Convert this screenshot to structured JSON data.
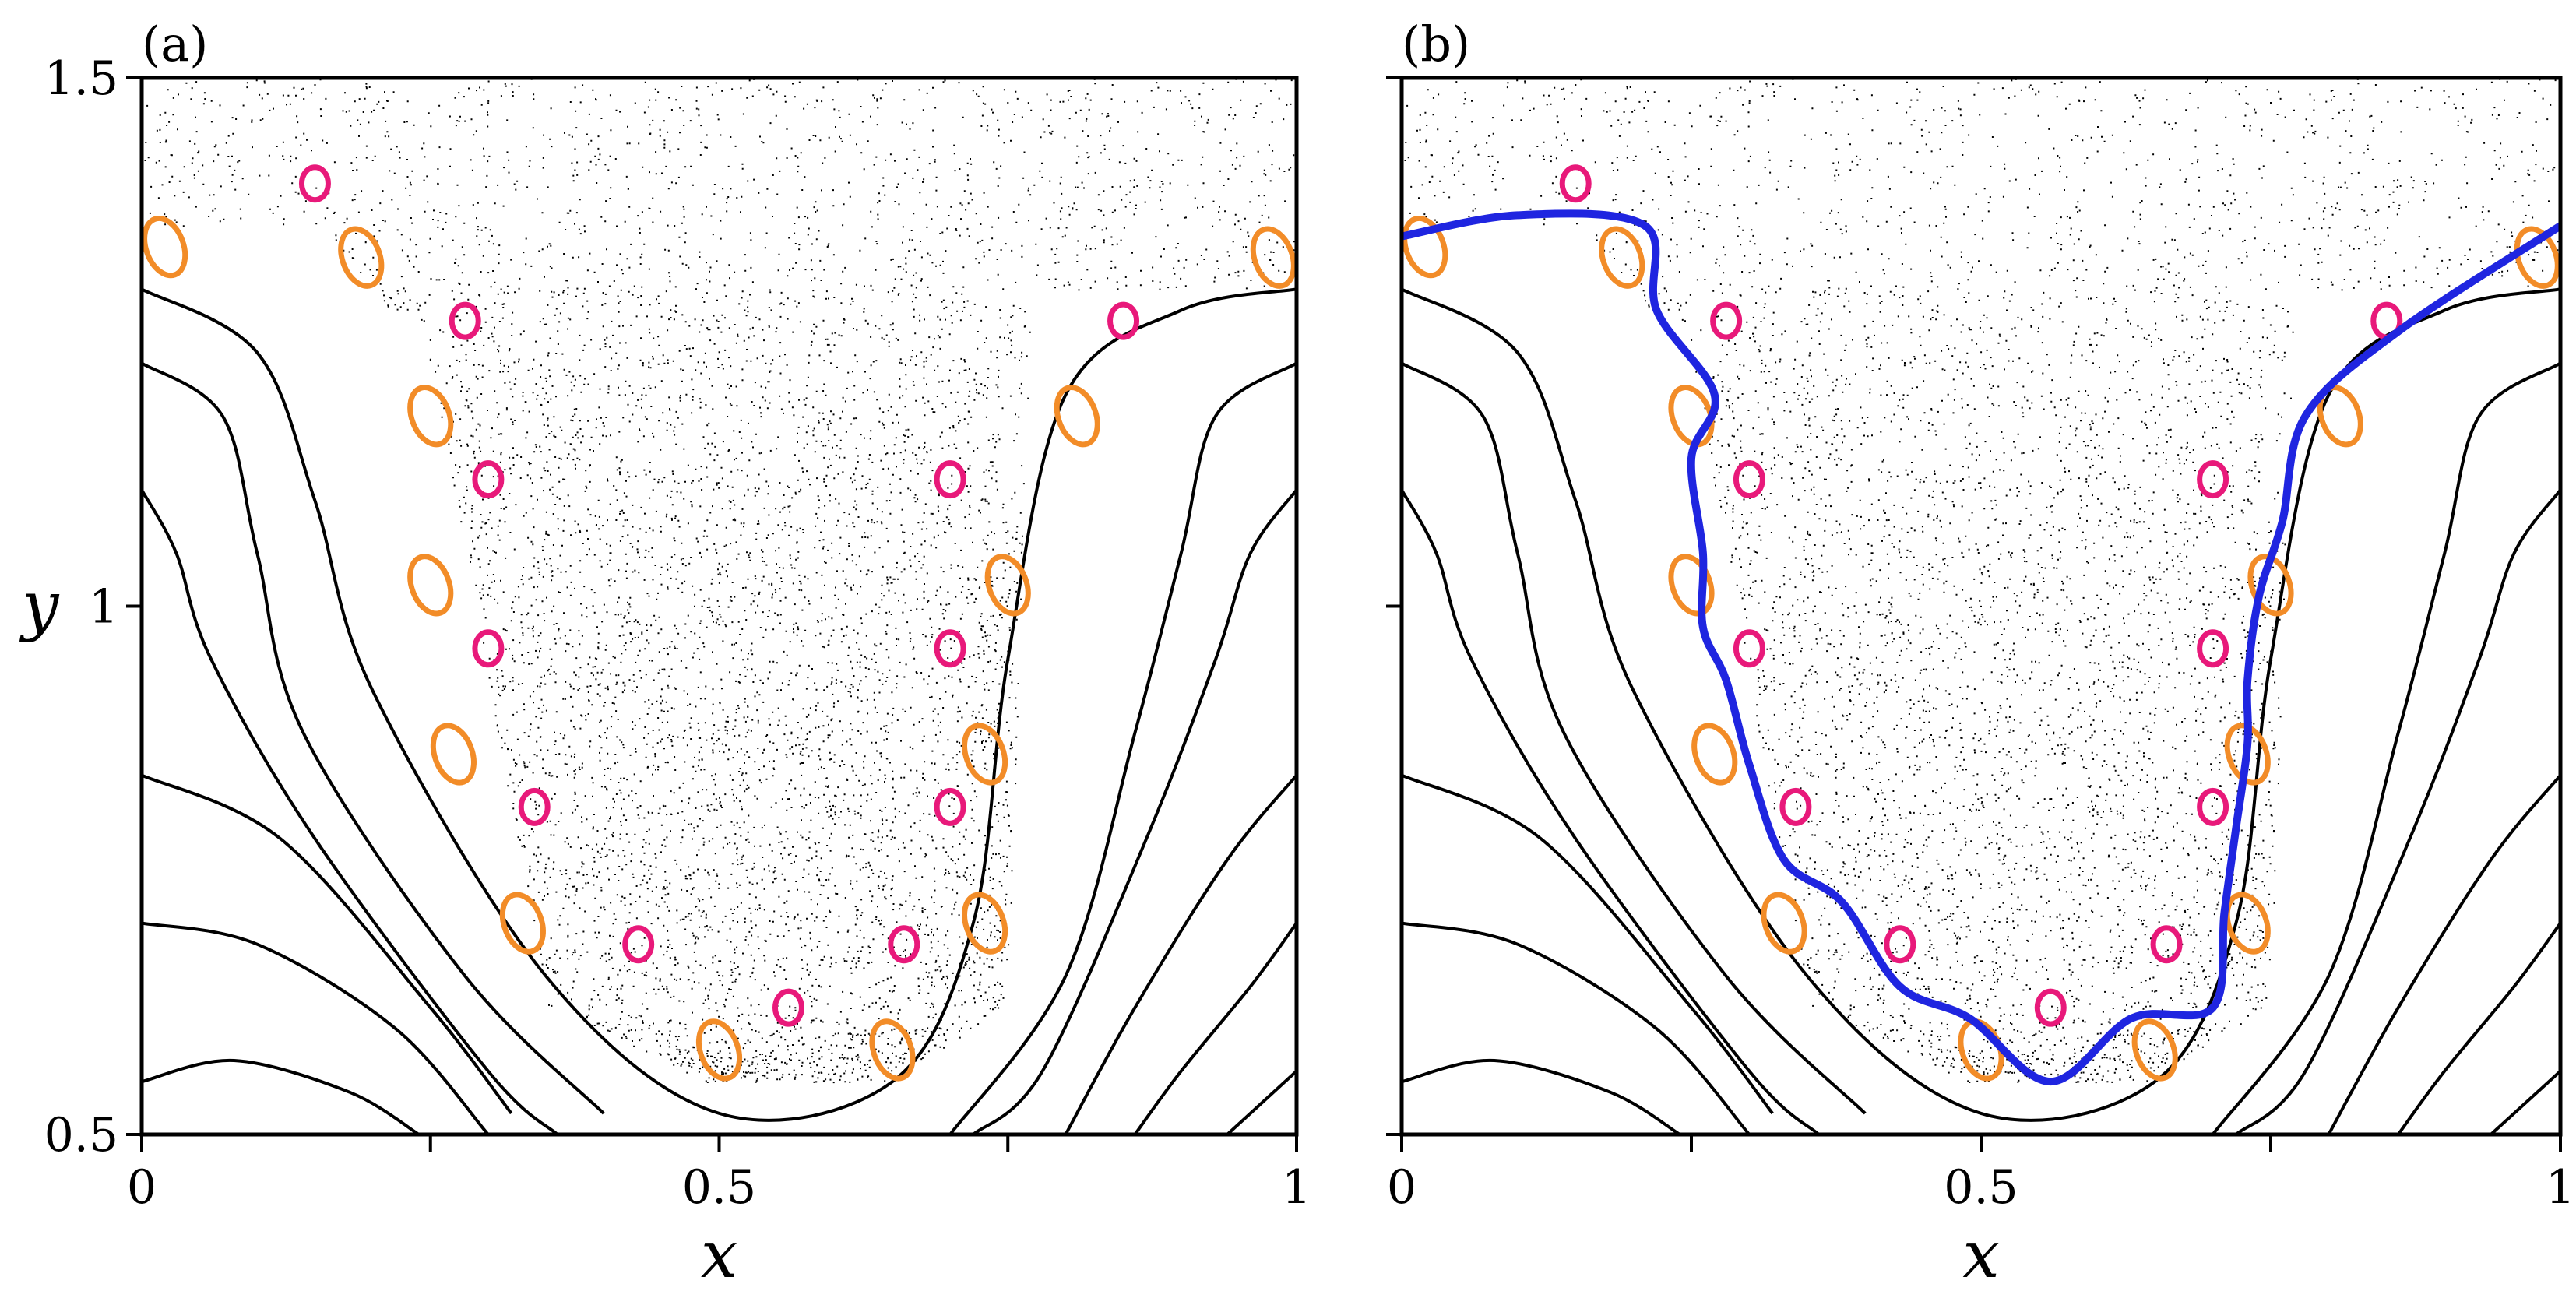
{
  "figure": {
    "description_free": true,
    "colors": {
      "background": "#ffffff",
      "axis": "#000000",
      "streamline": "#000000",
      "chaos_dots": "#000000",
      "orange_islands": "#f28c28",
      "pink_islands": "#e8197a",
      "boundary": "#1f25e0"
    }
  },
  "chart_data": [
    {
      "panel": "(a)",
      "type": "scatter",
      "xlabel": "x",
      "ylabel": "y",
      "xlim": [
        0,
        1
      ],
      "ylim": [
        0.5,
        1.5
      ],
      "xticks": [
        0,
        0.25,
        0.5,
        0.75,
        1
      ],
      "xtick_labels": [
        "0",
        "",
        "0.5",
        "",
        "1"
      ],
      "yticks": [
        0.5,
        1,
        1.5
      ],
      "ytick_labels": [
        "0.5",
        "1",
        "1.5"
      ],
      "orange_islands": [
        [
          0.02,
          1.34
        ],
        [
          0.19,
          1.33
        ],
        [
          0.25,
          1.18
        ],
        [
          0.25,
          1.02
        ],
        [
          0.27,
          0.86
        ],
        [
          0.33,
          0.7
        ],
        [
          0.5,
          0.58
        ],
        [
          0.98,
          1.33
        ],
        [
          0.81,
          1.18
        ],
        [
          0.75,
          1.02
        ],
        [
          0.73,
          0.86
        ],
        [
          0.73,
          0.7
        ],
        [
          0.65,
          0.58
        ]
      ],
      "pink_islands": [
        [
          0.15,
          1.4
        ],
        [
          0.28,
          1.27
        ],
        [
          0.3,
          1.12
        ],
        [
          0.3,
          0.96
        ],
        [
          0.34,
          0.81
        ],
        [
          0.43,
          0.68
        ],
        [
          0.56,
          0.62
        ],
        [
          0.66,
          0.68
        ],
        [
          0.7,
          0.81
        ],
        [
          0.7,
          0.96
        ],
        [
          0.7,
          1.12
        ],
        [
          0.85,
          1.27
        ]
      ],
      "boundary": null
    },
    {
      "panel": "(b)",
      "type": "scatter",
      "xlabel": "x",
      "ylabel": "",
      "xlim": [
        0,
        1
      ],
      "ylim": [
        0.5,
        1.5
      ],
      "xticks": [
        0,
        0.25,
        0.5,
        0.75,
        1
      ],
      "xtick_labels": [
        "0",
        "",
        "0.5",
        "",
        "1"
      ],
      "yticks": [
        0.5,
        1,
        1.5
      ],
      "ytick_labels": [
        "",
        "",
        ""
      ],
      "orange_islands": [
        [
          0.02,
          1.34
        ],
        [
          0.19,
          1.33
        ],
        [
          0.25,
          1.18
        ],
        [
          0.25,
          1.02
        ],
        [
          0.27,
          0.86
        ],
        [
          0.33,
          0.7
        ],
        [
          0.5,
          0.58
        ],
        [
          0.98,
          1.33
        ],
        [
          0.81,
          1.18
        ],
        [
          0.75,
          1.02
        ],
        [
          0.73,
          0.86
        ],
        [
          0.73,
          0.7
        ],
        [
          0.65,
          0.58
        ]
      ],
      "pink_islands": [
        [
          0.15,
          1.4
        ],
        [
          0.28,
          1.27
        ],
        [
          0.3,
          1.12
        ],
        [
          0.3,
          0.96
        ],
        [
          0.34,
          0.81
        ],
        [
          0.43,
          0.68
        ],
        [
          0.56,
          0.62
        ],
        [
          0.66,
          0.68
        ],
        [
          0.7,
          0.81
        ],
        [
          0.7,
          0.96
        ],
        [
          0.7,
          1.12
        ],
        [
          0.85,
          1.27
        ]
      ],
      "boundary": [
        [
          0.0,
          1.35
        ],
        [
          0.1,
          1.37
        ],
        [
          0.21,
          1.36
        ],
        [
          0.22,
          1.28
        ],
        [
          0.27,
          1.2
        ],
        [
          0.25,
          1.14
        ],
        [
          0.26,
          1.05
        ],
        [
          0.26,
          0.98
        ],
        [
          0.28,
          0.93
        ],
        [
          0.3,
          0.85
        ],
        [
          0.33,
          0.76
        ],
        [
          0.38,
          0.72
        ],
        [
          0.43,
          0.64
        ],
        [
          0.49,
          0.61
        ],
        [
          0.56,
          0.55
        ],
        [
          0.63,
          0.61
        ],
        [
          0.7,
          0.62
        ],
        [
          0.71,
          0.71
        ],
        [
          0.72,
          0.79
        ],
        [
          0.73,
          0.87
        ],
        [
          0.73,
          0.93
        ],
        [
          0.74,
          1.01
        ],
        [
          0.76,
          1.08
        ],
        [
          0.78,
          1.18
        ],
        [
          0.86,
          1.26
        ],
        [
          1.0,
          1.36
        ]
      ]
    }
  ]
}
